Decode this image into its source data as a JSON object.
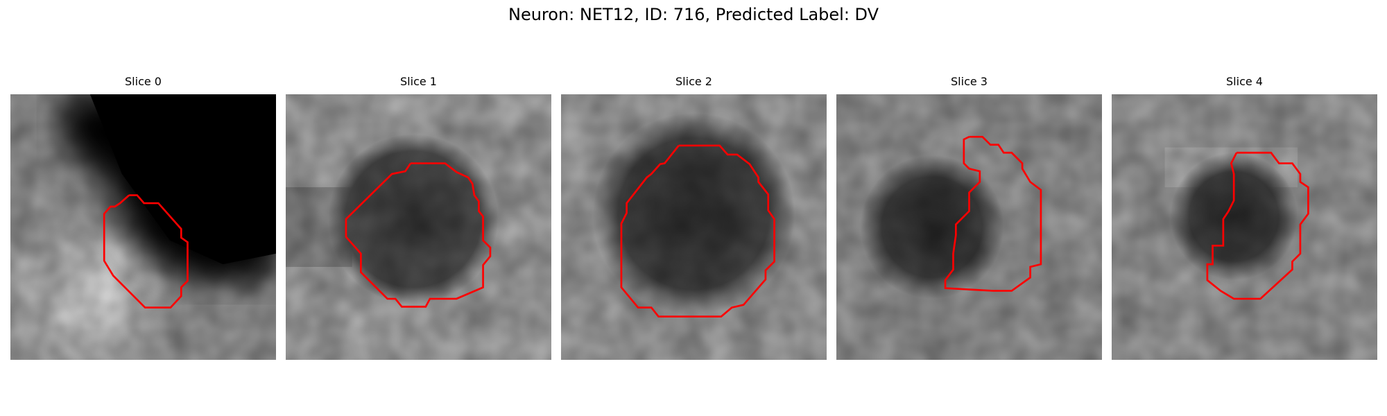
{
  "figure": {
    "title": "Neuron: NET12, ID: 716, Predicted Label: DV"
  },
  "colors": {
    "outline": "#ff0000",
    "background": "#ffffff"
  },
  "panels": [
    {
      "title": "Slice 0"
    },
    {
      "title": "Slice 1"
    },
    {
      "title": "Slice 2"
    },
    {
      "title": "Slice 3"
    },
    {
      "title": "Slice 4"
    }
  ]
}
